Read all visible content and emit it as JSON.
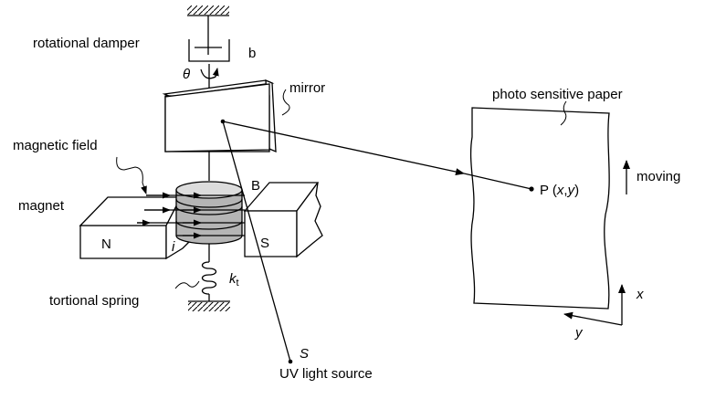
{
  "labels": {
    "damper": "rotational damper",
    "damping_coefficient": "b",
    "angle": "θ",
    "mirror": "mirror",
    "magnetic_field": "magnetic field",
    "magnet": "magnet",
    "field_symbol": "B",
    "north_pole": "N",
    "south_pole": "S",
    "current": "i",
    "spring_constant": "k",
    "spring_constant_subscript": "t",
    "spring": "tortional spring",
    "source_symbol": "S",
    "source": "UV light source",
    "paper": "photo sensitive paper",
    "moving": "moving",
    "point_prefix": "P (",
    "point_x": "x",
    "point_comma": ",",
    "point_y": "y",
    "point_suffix": ")",
    "axis_x": "x",
    "axis_y": "y"
  }
}
